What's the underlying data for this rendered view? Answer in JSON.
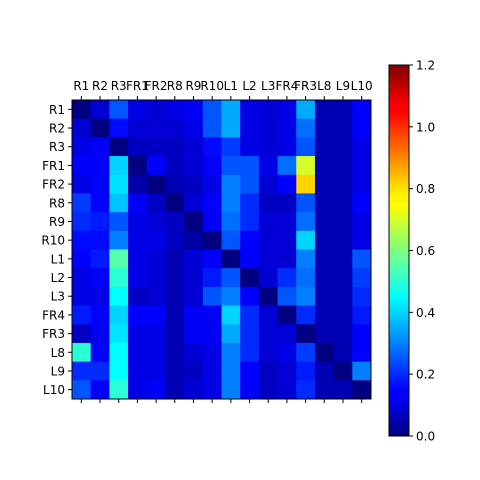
{
  "chart_data": {
    "type": "heatmap",
    "title": "",
    "xlabel": "",
    "ylabel": "",
    "x_labels": [
      "R1",
      "R2",
      "R3",
      "FR1",
      "FR2",
      "R8",
      "R9",
      "R10",
      "L1",
      "L2",
      "L3",
      "FR4",
      "FR3",
      "L8",
      "L9",
      "L10"
    ],
    "y_labels": [
      "R1",
      "R2",
      "R3",
      "FR1",
      "FR2",
      "R8",
      "R9",
      "R10",
      "L1",
      "L2",
      "L3",
      "FR4",
      "FR3",
      "L8",
      "L9",
      "L10"
    ],
    "x_label_position": "top",
    "colormap": "jet",
    "vmin": 0.0,
    "vmax": 1.2,
    "colorbar_ticks": [
      "0.0",
      "0.2",
      "0.4",
      "0.6",
      "0.8",
      "1.0",
      "1.2"
    ],
    "values": [
      [
        0.0,
        0.1,
        0.25,
        0.12,
        0.1,
        0.12,
        0.14,
        0.25,
        0.35,
        0.12,
        0.1,
        0.12,
        0.35,
        0.06,
        0.06,
        0.15
      ],
      [
        0.1,
        0.0,
        0.16,
        0.1,
        0.1,
        0.1,
        0.12,
        0.25,
        0.35,
        0.12,
        0.1,
        0.12,
        0.28,
        0.06,
        0.06,
        0.15
      ],
      [
        0.12,
        0.14,
        0.0,
        0.08,
        0.08,
        0.08,
        0.1,
        0.16,
        0.22,
        0.12,
        0.1,
        0.12,
        0.25,
        0.06,
        0.06,
        0.12
      ],
      [
        0.15,
        0.15,
        0.4,
        0.0,
        0.15,
        0.08,
        0.1,
        0.14,
        0.25,
        0.25,
        0.12,
        0.28,
        0.7,
        0.06,
        0.06,
        0.12
      ],
      [
        0.12,
        0.15,
        0.42,
        0.05,
        0.0,
        0.06,
        0.08,
        0.12,
        0.3,
        0.25,
        0.1,
        0.15,
        0.8,
        0.06,
        0.06,
        0.12
      ],
      [
        0.22,
        0.15,
        0.38,
        0.14,
        0.08,
        0.0,
        0.1,
        0.15,
        0.3,
        0.2,
        0.08,
        0.08,
        0.25,
        0.06,
        0.06,
        0.15
      ],
      [
        0.2,
        0.18,
        0.25,
        0.12,
        0.1,
        0.08,
        0.0,
        0.14,
        0.28,
        0.2,
        0.1,
        0.1,
        0.28,
        0.06,
        0.06,
        0.12
      ],
      [
        0.16,
        0.16,
        0.3,
        0.12,
        0.12,
        0.08,
        0.04,
        0.0,
        0.25,
        0.15,
        0.1,
        0.1,
        0.4,
        0.06,
        0.06,
        0.12
      ],
      [
        0.15,
        0.18,
        0.55,
        0.12,
        0.1,
        0.06,
        0.1,
        0.15,
        0.0,
        0.15,
        0.1,
        0.1,
        0.3,
        0.06,
        0.06,
        0.25
      ],
      [
        0.12,
        0.15,
        0.5,
        0.12,
        0.1,
        0.06,
        0.1,
        0.18,
        0.25,
        0.0,
        0.1,
        0.2,
        0.28,
        0.06,
        0.06,
        0.22
      ],
      [
        0.12,
        0.12,
        0.45,
        0.08,
        0.1,
        0.06,
        0.1,
        0.25,
        0.3,
        0.15,
        0.0,
        0.25,
        0.3,
        0.06,
        0.06,
        0.2
      ],
      [
        0.18,
        0.15,
        0.4,
        0.15,
        0.15,
        0.06,
        0.14,
        0.14,
        0.4,
        0.2,
        0.1,
        0.0,
        0.2,
        0.06,
        0.06,
        0.18
      ],
      [
        0.08,
        0.14,
        0.42,
        0.12,
        0.12,
        0.06,
        0.14,
        0.14,
        0.35,
        0.2,
        0.1,
        0.1,
        0.0,
        0.06,
        0.06,
        0.15
      ],
      [
        0.5,
        0.15,
        0.45,
        0.12,
        0.12,
        0.06,
        0.1,
        0.12,
        0.3,
        0.2,
        0.1,
        0.12,
        0.22,
        0.0,
        0.06,
        0.15
      ],
      [
        0.2,
        0.2,
        0.45,
        0.12,
        0.12,
        0.06,
        0.08,
        0.12,
        0.3,
        0.15,
        0.08,
        0.1,
        0.18,
        0.06,
        0.0,
        0.3
      ],
      [
        0.25,
        0.15,
        0.5,
        0.12,
        0.14,
        0.06,
        0.1,
        0.12,
        0.3,
        0.15,
        0.08,
        0.1,
        0.2,
        0.06,
        0.06,
        0.0
      ]
    ]
  }
}
